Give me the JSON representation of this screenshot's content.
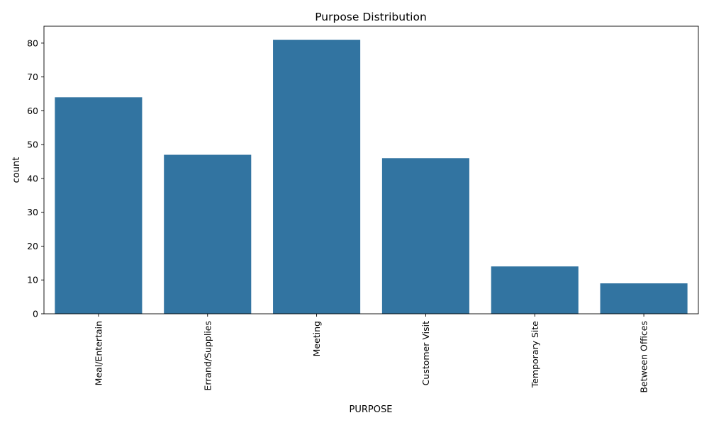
{
  "chart_data": {
    "type": "bar",
    "title": "Purpose Distribution",
    "xlabel": "PURPOSE",
    "ylabel": "count",
    "categories": [
      "Meal/Entertain",
      "Errand/Supplies",
      "Meeting",
      "Customer Visit",
      "Temporary Site",
      "Between Offices"
    ],
    "values": [
      64,
      47,
      81,
      46,
      14,
      9
    ],
    "ylim": [
      0,
      85
    ],
    "yticks": [
      0,
      10,
      20,
      30,
      40,
      50,
      60,
      70,
      80
    ],
    "x_tick_rotation": "vertical",
    "grid": false,
    "legend": "none",
    "bar_color": "#3274a1"
  }
}
